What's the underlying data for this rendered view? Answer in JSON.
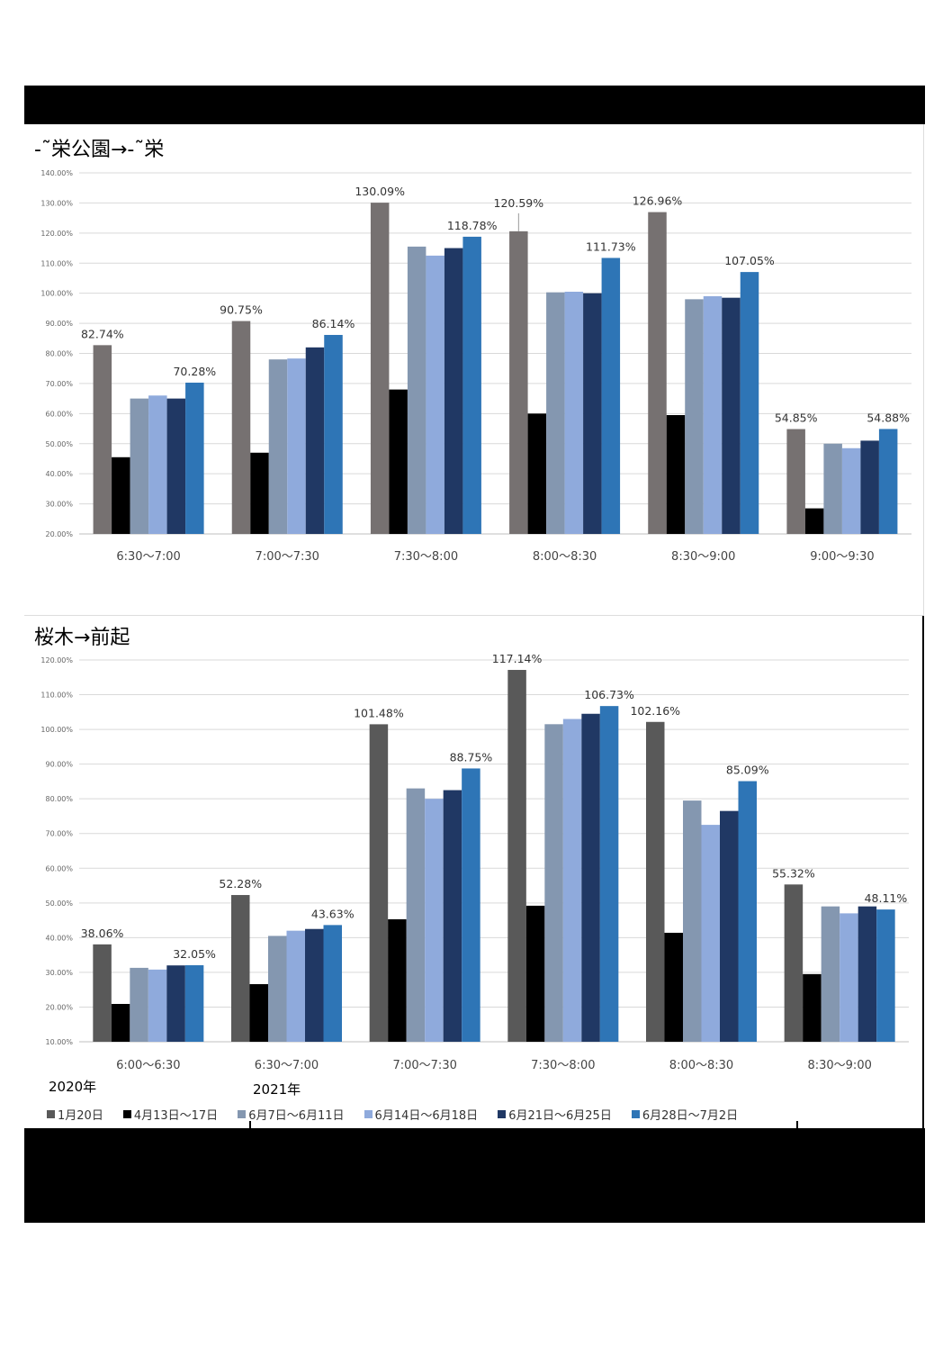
{
  "colors": [
    "#767171",
    "#000000",
    "#8497b0",
    "#8faadc",
    "#203864",
    "#2e75b6"
  ],
  "colors2": [
    "#595959",
    "#000000",
    "#8497b0",
    "#8faadc",
    "#203864",
    "#2e75b6"
  ],
  "legend": {
    "year_2020": "2020年",
    "year_2021": "2021年",
    "items": [
      "1月20日",
      "4月13日～17日",
      "6月7日～6月11日",
      "6月14日～6月18日",
      "6月21日～6月25日",
      "6月28日～7月2日"
    ]
  },
  "chart_data": [
    {
      "type": "bar",
      "title": "-˜栄公園→-˜栄",
      "ylim": [
        20,
        140
      ],
      "yticks": [
        "20.00%",
        "30.00%",
        "40.00%",
        "50.00%",
        "60.00%",
        "70.00%",
        "80.00%",
        "90.00%",
        "100.00%",
        "110.00%",
        "120.00%",
        "130.00%",
        "140.00%"
      ],
      "categories": [
        "6:30～7:00",
        "7:00～7:30",
        "7:30～8:00",
        "8:00～8:30",
        "8:30～9:00",
        "9:00～9:30"
      ],
      "series": [
        {
          "name": "1月20日",
          "values": [
            82.74,
            90.75,
            130.09,
            120.59,
            126.96,
            54.85
          ],
          "labels": [
            "82.74%",
            "90.75%",
            "130.09%",
            "120.59%",
            "126.96%",
            "54.85%"
          ]
        },
        {
          "name": "4月13日～17日",
          "values": [
            45.5,
            47,
            68,
            60,
            59.5,
            28.5
          ]
        },
        {
          "name": "6月7日～6月11日",
          "values": [
            65,
            78,
            115.5,
            100.3,
            98,
            50
          ]
        },
        {
          "name": "6月14日～6月18日",
          "values": [
            66,
            78.3,
            112.5,
            100.5,
            99,
            48.5
          ]
        },
        {
          "name": "6月21日～6月25日",
          "values": [
            65,
            82,
            115,
            100,
            98.5,
            51
          ]
        },
        {
          "name": "6月28日～7月2日",
          "values": [
            70.28,
            86.14,
            118.78,
            111.73,
            107.05,
            54.88
          ],
          "labels": [
            "70.28%",
            "86.14%",
            "118.78%",
            "111.73%",
            "107.05%",
            "54.88%"
          ]
        }
      ]
    },
    {
      "type": "bar",
      "title": "桜木→前起",
      "ylim": [
        10,
        120
      ],
      "yticks": [
        "10.00%",
        "20.00%",
        "30.00%",
        "40.00%",
        "50.00%",
        "60.00%",
        "70.00%",
        "80.00%",
        "90.00%",
        "100.00%",
        "110.00%",
        "120.00%"
      ],
      "categories": [
        "6:00～6:30",
        "6:30～7:00",
        "7:00～7:30",
        "7:30～8:00",
        "8:00～8:30",
        "8:30～9:00"
      ],
      "series": [
        {
          "name": "1月20日",
          "values": [
            38.06,
            52.28,
            101.48,
            117.14,
            102.16,
            55.32
          ],
          "labels": [
            "38.06%",
            "52.28%",
            "101.48%",
            "117.14%",
            "102.16%",
            "55.32%"
          ]
        },
        {
          "name": "4月13日～17日",
          "values": [
            20.9,
            26.6,
            45.3,
            49.2,
            41.4,
            29.5
          ]
        },
        {
          "name": "6月7日～6月11日",
          "values": [
            31.3,
            40.5,
            83,
            101.5,
            79.5,
            49
          ]
        },
        {
          "name": "6月14日～6月18日",
          "values": [
            30.8,
            42,
            80,
            103,
            72.5,
            47
          ]
        },
        {
          "name": "6月21日～6月25日",
          "values": [
            32,
            42.5,
            82.5,
            104.5,
            76.5,
            49
          ]
        },
        {
          "name": "6月28日～7月2日",
          "values": [
            32.05,
            43.63,
            88.75,
            106.73,
            85.09,
            48.11
          ],
          "labels": [
            "32.05%",
            "43.63%",
            "88.75%",
            "106.73%",
            "85.09%",
            "48.11%"
          ]
        }
      ]
    }
  ]
}
